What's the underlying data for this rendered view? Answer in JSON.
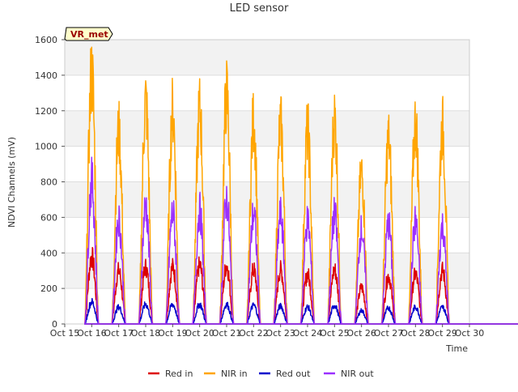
{
  "chart_data": {
    "type": "line",
    "title": "LED sensor",
    "xlabel": "Time",
    "ylabel": "NDVI Channels (mV)",
    "ylim": [
      0,
      1600
    ],
    "yticks": [
      0,
      200,
      400,
      600,
      800,
      1000,
      1200,
      1400,
      1600
    ],
    "xlim": [
      "2019-10-15",
      "2019-10-30"
    ],
    "xtick_labels": [
      "Oct 15",
      "Oct 16",
      "Oct 17",
      "Oct 18",
      "Oct 19",
      "Oct 20",
      "Oct 21",
      "Oct 22",
      "Oct 23",
      "Oct 24",
      "Oct 25",
      "Oct 26",
      "Oct 27",
      "Oct 28",
      "Oct 29",
      "Oct 30"
    ],
    "badge": "VR_met",
    "legend_position": "bottom",
    "data_range_days": [
      15.35,
      29.7
    ],
    "series": [
      {
        "name": "Red in",
        "color": "#dd0000",
        "daily_peaks": [
          380,
          300,
          320,
          320,
          330,
          330,
          305,
          305,
          280,
          305,
          205,
          270,
          280,
          300
        ]
      },
      {
        "name": "NIR in",
        "color": "#ffa500",
        "daily_peaks": [
          1410,
          1080,
          1250,
          1200,
          1205,
          1290,
          1140,
          1120,
          1080,
          1155,
          850,
          1040,
          1130,
          1105
        ]
      },
      {
        "name": "Red out",
        "color": "#0000cc",
        "daily_peaks": [
          125,
          95,
          110,
          110,
          110,
          110,
          105,
          100,
          95,
          105,
          75,
          90,
          95,
          95
        ]
      },
      {
        "name": "NIR out",
        "color": "#9b30ff",
        "daily_peaks": [
          800,
          590,
          665,
          625,
          635,
          700,
          620,
          615,
          580,
          615,
          530,
          565,
          575,
          550
        ]
      }
    ],
    "x_days": [
      "2019-10-16",
      "2019-10-17",
      "2019-10-18",
      "2019-10-19",
      "2019-10-20",
      "2019-10-21",
      "2019-10-22",
      "2019-10-23",
      "2019-10-24",
      "2019-10-25",
      "2019-10-26",
      "2019-10-27",
      "2019-10-28",
      "2019-10-29"
    ]
  }
}
